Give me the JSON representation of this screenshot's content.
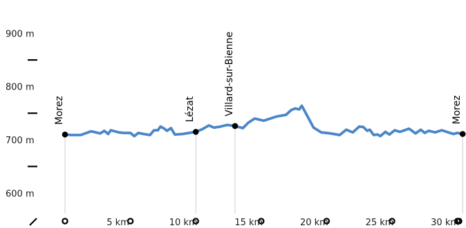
{
  "chart_data": {
    "type": "line",
    "title": "",
    "xlabel": "",
    "ylabel": "",
    "unit_x": "km",
    "unit_y": "m",
    "xlim": [
      0,
      32
    ],
    "ylim": [
      580,
      940
    ],
    "y_ticks": [
      {
        "value": 900,
        "label": "900 m"
      },
      {
        "value": 800,
        "label": "800 m"
      },
      {
        "value": 700,
        "label": "700 m"
      },
      {
        "value": 600,
        "label": "600 m"
      }
    ],
    "x_ticks": [
      {
        "value": 5,
        "label": "5 km"
      },
      {
        "value": 10,
        "label": "10 km"
      },
      {
        "value": 15,
        "label": "15 km"
      },
      {
        "value": 20,
        "label": "20 km"
      },
      {
        "value": 25,
        "label": "25 km"
      },
      {
        "value": 30,
        "label": "30 km"
      }
    ],
    "waypoints": [
      {
        "name": "Morez",
        "x": 0.0,
        "y": 710
      },
      {
        "name": "Lézat",
        "x": 10.0,
        "y": 715
      },
      {
        "name": "Villard-sur-Bienne",
        "x": 13.0,
        "y": 726
      },
      {
        "name": "Morez",
        "x": 30.4,
        "y": 711
      }
    ],
    "series": [
      {
        "color": "#4a86c8",
        "x": [
          0.0,
          0.5,
          1.2,
          2.0,
          2.7,
          3.0,
          3.3,
          3.5,
          4.1,
          4.5,
          5.0,
          5.3,
          5.6,
          6.0,
          6.5,
          6.8,
          7.1,
          7.3,
          7.6,
          7.8,
          8.1,
          8.4,
          9.0,
          10.0,
          10.5,
          11.0,
          11.4,
          11.9,
          12.4,
          13.0,
          13.6,
          14.0,
          14.5,
          15.2,
          15.7,
          16.2,
          16.9,
          17.3,
          17.6,
          17.9,
          18.1,
          19.0,
          19.6,
          20.3,
          21.0,
          21.5,
          22.0,
          22.5,
          22.8,
          23.1,
          23.3,
          23.6,
          23.9,
          24.1,
          24.5,
          24.8,
          25.2,
          25.6,
          26.3,
          26.8,
          27.2,
          27.5,
          27.8,
          28.3,
          28.8,
          29.3,
          29.7,
          30.0,
          30.4
        ],
        "y": [
          710,
          709,
          709,
          716,
          712,
          717,
          711,
          718,
          714,
          713,
          713,
          707,
          713,
          711,
          709,
          718,
          718,
          725,
          721,
          717,
          722,
          710,
          711,
          715,
          720,
          727,
          723,
          725,
          728,
          726,
          722,
          732,
          740,
          736,
          740,
          744,
          747,
          756,
          759,
          757,
          764,
          723,
          714,
          712,
          709,
          719,
          714,
          725,
          724,
          717,
          719,
          709,
          710,
          707,
          715,
          710,
          718,
          715,
          721,
          712,
          719,
          713,
          717,
          714,
          718,
          714,
          711,
          713,
          711
        ]
      }
    ]
  }
}
